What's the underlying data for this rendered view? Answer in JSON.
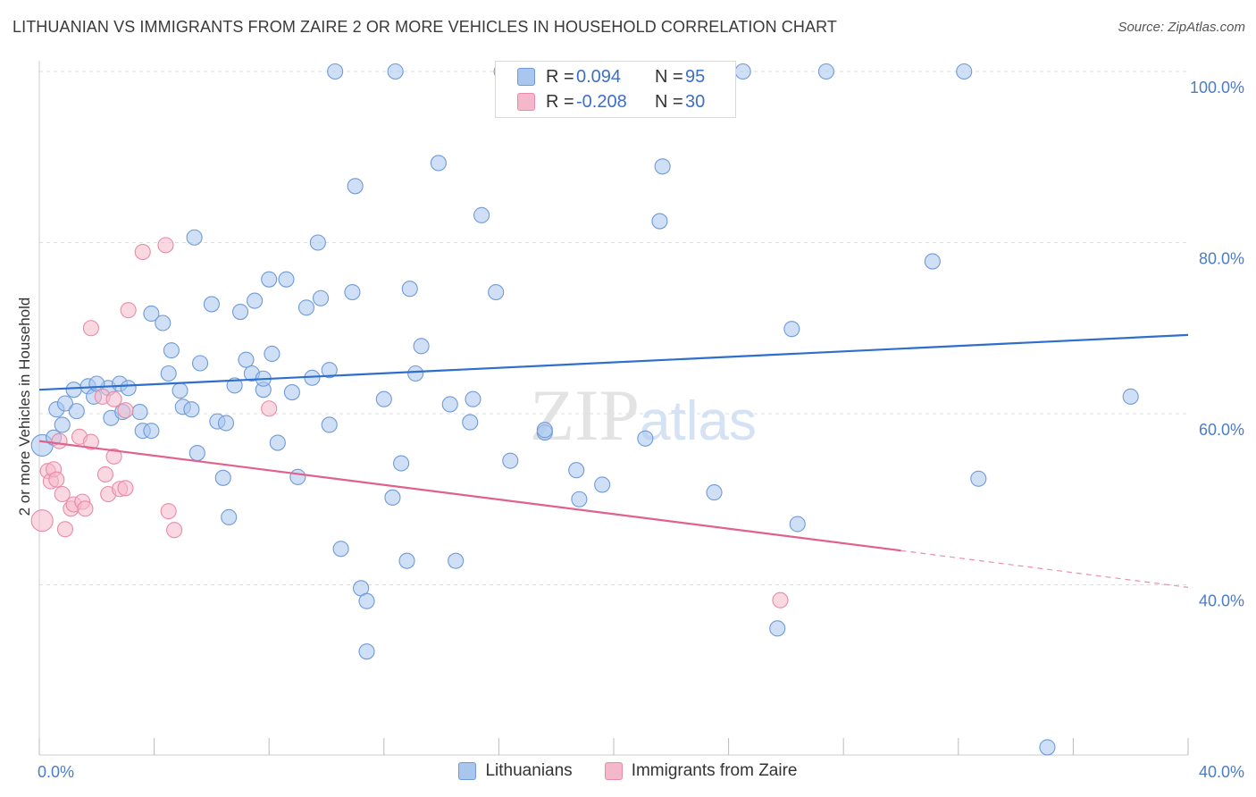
{
  "chart_data": {
    "type": "scatter",
    "title": "LITHUANIAN VS IMMIGRANTS FROM ZAIRE 2 OR MORE VEHICLES IN HOUSEHOLD CORRELATION CHART",
    "source": "Source: ZipAtlas.com",
    "xlabel": "",
    "ylabel": "2 or more Vehicles in Household",
    "xlim": [
      0,
      40
    ],
    "ylim": [
      20,
      102
    ],
    "x_tick_labels": [
      "0.0%",
      "40.0%"
    ],
    "y_ticks": [
      40,
      60,
      80,
      100
    ],
    "y_tick_labels": [
      "40.0%",
      "60.0%",
      "80.0%",
      "100.0%"
    ],
    "watermark": "ZIPatlas",
    "legend": [
      {
        "name": "Lithuanians",
        "r_label": "R =",
        "r_value": "0.094",
        "n_label": "N =",
        "n_value": "95",
        "color": "#a8c6ee",
        "edge": "#6f9ad8",
        "line": "#2e6fcc"
      },
      {
        "name": "Immigrants from Zaire",
        "r_label": "R =",
        "r_value": "-0.208",
        "n_label": "N =",
        "n_value": "30",
        "color": "#f5b8cb",
        "edge": "#e88aa8",
        "line": "#e0608e"
      }
    ],
    "series": [
      {
        "name": "Lithuanians",
        "trend": {
          "x0": 0,
          "y0": 62.8,
          "x1": 40,
          "y1": 69.2
        },
        "points": [
          [
            0.1,
            56.3
          ],
          [
            0.5,
            57.2
          ],
          [
            0.8,
            58.7
          ],
          [
            0.6,
            60.5
          ],
          [
            0.9,
            61.2
          ],
          [
            1.2,
            62.8
          ],
          [
            1.7,
            63.2
          ],
          [
            1.9,
            62.0
          ],
          [
            2.4,
            63.0
          ],
          [
            2.8,
            63.5
          ],
          [
            1.3,
            60.3
          ],
          [
            2.5,
            59.5
          ],
          [
            2.9,
            60.2
          ],
          [
            3.5,
            60.2
          ],
          [
            3.6,
            58.0
          ],
          [
            3.1,
            63.0
          ],
          [
            3.9,
            58.0
          ],
          [
            3.9,
            71.7
          ],
          [
            4.3,
            70.6
          ],
          [
            4.6,
            67.4
          ],
          [
            4.5,
            64.7
          ],
          [
            4.9,
            62.7
          ],
          [
            5.0,
            60.8
          ],
          [
            5.3,
            60.5
          ],
          [
            5.5,
            55.4
          ],
          [
            5.6,
            65.9
          ],
          [
            6.0,
            72.8
          ],
          [
            6.2,
            59.1
          ],
          [
            5.4,
            80.6
          ],
          [
            6.4,
            52.5
          ],
          [
            6.6,
            47.9
          ],
          [
            6.8,
            63.3
          ],
          [
            7.0,
            71.9
          ],
          [
            7.2,
            66.3
          ],
          [
            7.4,
            64.7
          ],
          [
            7.5,
            73.2
          ],
          [
            7.8,
            62.8
          ],
          [
            8.0,
            75.7
          ],
          [
            8.1,
            67.0
          ],
          [
            8.3,
            56.6
          ],
          [
            8.6,
            75.7
          ],
          [
            8.8,
            62.5
          ],
          [
            9.0,
            52.6
          ],
          [
            9.3,
            72.4
          ],
          [
            9.5,
            64.2
          ],
          [
            9.7,
            80.0
          ],
          [
            9.8,
            73.5
          ],
          [
            10.1,
            65.1
          ],
          [
            10.3,
            100.0
          ],
          [
            10.5,
            44.2
          ],
          [
            10.9,
            74.2
          ],
          [
            11.0,
            86.6
          ],
          [
            11.2,
            39.6
          ],
          [
            11.4,
            38.1
          ],
          [
            11.4,
            32.2
          ],
          [
            12.3,
            50.2
          ],
          [
            12.4,
            100.0
          ],
          [
            12.6,
            54.2
          ],
          [
            12.8,
            42.8
          ],
          [
            12.9,
            74.6
          ],
          [
            13.1,
            64.7
          ],
          [
            13.3,
            67.9
          ],
          [
            13.9,
            89.3
          ],
          [
            14.3,
            61.1
          ],
          [
            14.5,
            42.8
          ],
          [
            15.0,
            59.0
          ],
          [
            15.1,
            61.7
          ],
          [
            15.4,
            83.2
          ],
          [
            15.9,
            74.2
          ],
          [
            16.1,
            100.0
          ],
          [
            16.4,
            54.5
          ],
          [
            17.6,
            57.8
          ],
          [
            18.7,
            53.4
          ],
          [
            18.8,
            50.0
          ],
          [
            19.6,
            51.7
          ],
          [
            21.1,
            57.1
          ],
          [
            21.6,
            82.5
          ],
          [
            21.7,
            88.9
          ],
          [
            23.5,
            50.8
          ],
          [
            24.5,
            100.0
          ],
          [
            26.2,
            69.9
          ],
          [
            26.4,
            47.1
          ],
          [
            25.7,
            34.9
          ],
          [
            27.4,
            100.0
          ],
          [
            31.1,
            77.8
          ],
          [
            32.2,
            100.0
          ],
          [
            32.7,
            52.4
          ],
          [
            35.1,
            21.0
          ],
          [
            38.0,
            62.0
          ],
          [
            17.6,
            58.1
          ],
          [
            2.0,
            63.5
          ],
          [
            6.5,
            58.9
          ],
          [
            7.8,
            64.1
          ],
          [
            12.0,
            61.7
          ],
          [
            10.1,
            58.7
          ]
        ]
      },
      {
        "name": "Immigrants from Zaire",
        "trend": {
          "x0": 0,
          "y0": 56.8,
          "x1": 30,
          "y1": 44.0
        },
        "trend_dash_end": {
          "x": 40,
          "y": 39.7
        },
        "points": [
          [
            0.1,
            47.5
          ],
          [
            0.3,
            53.3
          ],
          [
            0.4,
            52.1
          ],
          [
            0.5,
            53.5
          ],
          [
            0.6,
            52.3
          ],
          [
            0.7,
            56.8
          ],
          [
            0.8,
            50.6
          ],
          [
            0.9,
            46.5
          ],
          [
            1.1,
            48.9
          ],
          [
            1.2,
            49.4
          ],
          [
            1.4,
            57.3
          ],
          [
            1.5,
            49.7
          ],
          [
            1.6,
            48.9
          ],
          [
            1.8,
            56.7
          ],
          [
            2.2,
            62.0
          ],
          [
            2.3,
            52.9
          ],
          [
            2.4,
            50.6
          ],
          [
            2.6,
            55.0
          ],
          [
            2.8,
            51.2
          ],
          [
            3.0,
            51.3
          ],
          [
            3.1,
            72.1
          ],
          [
            1.8,
            70.0
          ],
          [
            3.6,
            78.9
          ],
          [
            4.4,
            79.7
          ],
          [
            4.5,
            48.6
          ],
          [
            4.7,
            46.4
          ],
          [
            8.0,
            60.6
          ],
          [
            25.8,
            38.2
          ],
          [
            3.0,
            60.4
          ],
          [
            2.6,
            61.7
          ]
        ]
      }
    ]
  }
}
